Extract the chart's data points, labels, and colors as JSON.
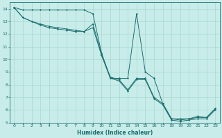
{
  "xlabel": "Humidex (Indice chaleur)",
  "bg_color": "#c8ece9",
  "grid_color": "#a8d8d0",
  "line_color": "#1a6e6e",
  "xlim": [
    -0.5,
    23.5
  ],
  "ylim": [
    5,
    14.5
  ],
  "yticks": [
    5,
    6,
    7,
    8,
    9,
    10,
    11,
    12,
    13,
    14
  ],
  "xticks": [
    0,
    1,
    2,
    3,
    4,
    5,
    6,
    7,
    8,
    9,
    10,
    11,
    12,
    13,
    14,
    15,
    16,
    17,
    18,
    19,
    20,
    21,
    22,
    23
  ],
  "series": [
    {
      "x": [
        0,
        1,
        2,
        3,
        4,
        5,
        6,
        7,
        8,
        9,
        10,
        11,
        12,
        13,
        14,
        15,
        16,
        17,
        18,
        19,
        20,
        21,
        22,
        23
      ],
      "y": [
        14.1,
        13.9,
        13.9,
        13.9,
        13.9,
        13.9,
        13.9,
        13.9,
        13.9,
        13.6,
        10.5,
        8.5,
        8.5,
        8.5,
        13.6,
        9.0,
        8.5,
        6.5,
        5.3,
        5.3,
        5.3,
        5.5,
        5.4,
        6.1
      ]
    },
    {
      "x": [
        0,
        1,
        2,
        3,
        4,
        5,
        6,
        7,
        8,
        9,
        10,
        11,
        12,
        13,
        14,
        15,
        16,
        17,
        18,
        19,
        20,
        21,
        22,
        23
      ],
      "y": [
        14.1,
        13.3,
        13.0,
        12.8,
        12.6,
        12.5,
        12.4,
        12.3,
        12.2,
        12.8,
        10.4,
        8.6,
        8.4,
        7.6,
        8.5,
        8.5,
        7.0,
        6.5,
        5.3,
        5.2,
        5.3,
        5.4,
        5.4,
        6.1
      ]
    },
    {
      "x": [
        0,
        1,
        2,
        3,
        4,
        5,
        6,
        7,
        8,
        9,
        10,
        11,
        12,
        13,
        14,
        15,
        16,
        17,
        18,
        19,
        20,
        21,
        22,
        23
      ],
      "y": [
        14.1,
        13.3,
        13.0,
        12.7,
        12.5,
        12.4,
        12.3,
        12.2,
        12.2,
        12.5,
        10.3,
        8.5,
        8.3,
        7.5,
        8.4,
        8.4,
        6.9,
        6.4,
        5.2,
        5.1,
        5.2,
        5.3,
        5.3,
        6.0
      ]
    }
  ]
}
